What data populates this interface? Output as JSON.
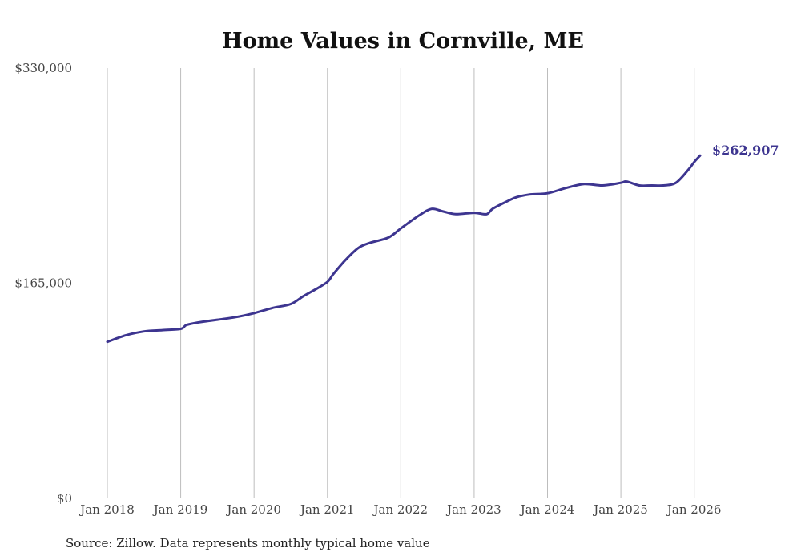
{
  "chart_data": {
    "type": "line",
    "title": "Home Values in Cornville, ME",
    "source": "Source: Zillow. Data represents monthly typical home value",
    "xlabel": "",
    "ylabel": "",
    "ylim": [
      0,
      330000
    ],
    "y_ticks": [
      {
        "value": 0,
        "label": "$0"
      },
      {
        "value": 165000,
        "label": "$165,000"
      },
      {
        "value": 330000,
        "label": "$330,000"
      }
    ],
    "x_ticks": [
      {
        "value": 2018,
        "label": "Jan 2018"
      },
      {
        "value": 2019,
        "label": "Jan 2019"
      },
      {
        "value": 2020,
        "label": "Jan 2020"
      },
      {
        "value": 2021,
        "label": "Jan 2021"
      },
      {
        "value": 2022,
        "label": "Jan 2022"
      },
      {
        "value": 2023,
        "label": "Jan 2023"
      },
      {
        "value": 2024,
        "label": "Jan 2024"
      },
      {
        "value": 2025,
        "label": "Jan 2025"
      },
      {
        "value": 2026,
        "label": "Jan 2026"
      }
    ],
    "xlim": [
      2018,
      2026.08
    ],
    "grid": "vertical",
    "line_color": "#3d3590",
    "end_label": "$262,907",
    "series": [
      {
        "name": "Typical home value",
        "x": [
          2018.0,
          2018.25,
          2018.5,
          2018.75,
          2019.0,
          2019.08,
          2019.25,
          2019.5,
          2019.75,
          2020.0,
          2020.25,
          2020.5,
          2020.67,
          2020.83,
          2021.0,
          2021.08,
          2021.25,
          2021.42,
          2021.58,
          2021.83,
          2022.0,
          2022.25,
          2022.42,
          2022.58,
          2022.75,
          2023.0,
          2023.17,
          2023.25,
          2023.42,
          2023.58,
          2023.75,
          2024.0,
          2024.25,
          2024.5,
          2024.75,
          2025.0,
          2025.08,
          2025.25,
          2025.42,
          2025.58,
          2025.75,
          2025.92,
          2026.0,
          2026.08
        ],
        "values": [
          120000,
          125000,
          128000,
          129000,
          130000,
          133000,
          135000,
          137000,
          139000,
          142000,
          146000,
          149000,
          155000,
          160000,
          166000,
          172000,
          183000,
          192000,
          196000,
          200000,
          207000,
          217000,
          222000,
          220000,
          218000,
          219000,
          218000,
          222000,
          227000,
          231000,
          233000,
          234000,
          238000,
          241000,
          240000,
          242000,
          243000,
          240000,
          240000,
          240000,
          242000,
          252000,
          258000,
          262907
        ]
      }
    ]
  }
}
